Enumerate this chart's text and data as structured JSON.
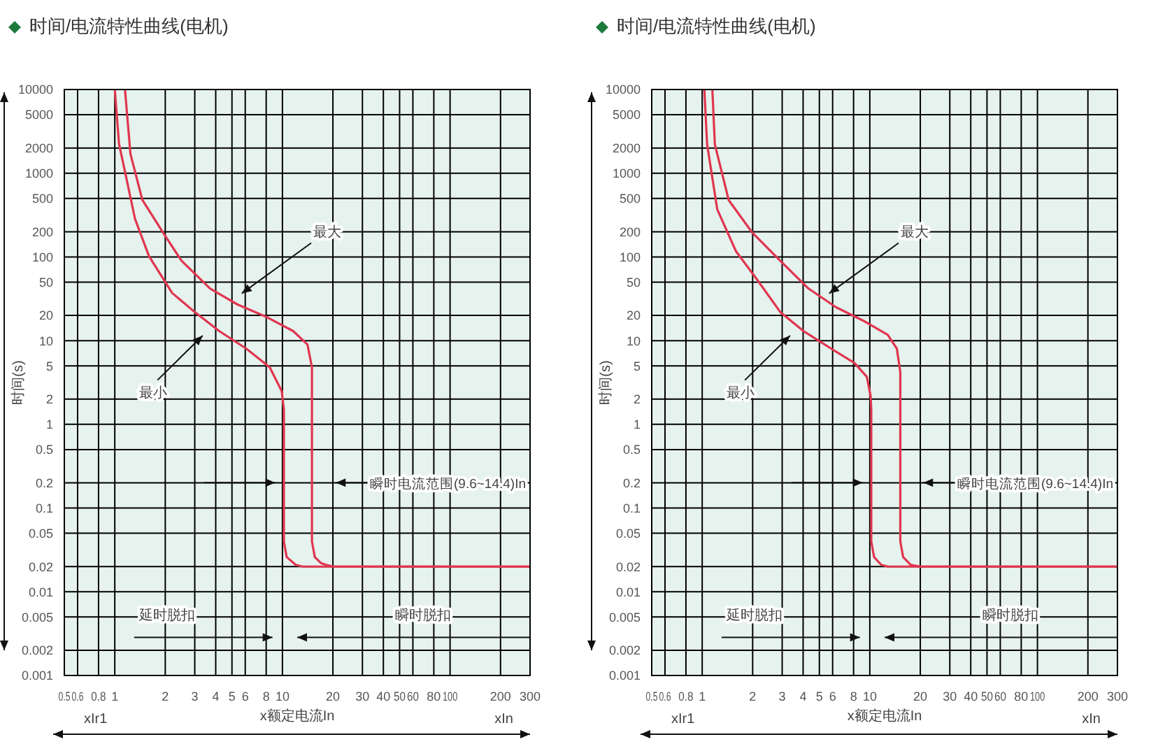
{
  "chart_data": [
    {
      "type": "line",
      "title": "时间/电流特性曲线(电机)",
      "xlabel": "x额定电流In",
      "ylabel": "时间(s)",
      "log": "xy",
      "xlim": [
        0.5,
        300
      ],
      "ylim": [
        0.001,
        10000
      ],
      "xticks": [
        0.5,
        0.6,
        0.8,
        1,
        2,
        3,
        4,
        5,
        6,
        8,
        10,
        20,
        30,
        40,
        50,
        60,
        80,
        100,
        200,
        300
      ],
      "yticks": [
        0.001,
        0.002,
        0.005,
        0.01,
        0.02,
        0.05,
        0.1,
        0.2,
        0.5,
        1,
        2,
        5,
        10,
        20,
        50,
        100,
        200,
        500,
        1000,
        2000,
        5000,
        10000
      ],
      "grid": true,
      "series": [
        {
          "color": "#e0364f",
          "x": [
            1.0,
            1.06,
            1.2,
            1.32,
            1.6,
            2.2,
            3,
            4.2,
            6.1,
            8.4,
            9.9,
            10.2,
            10.2,
            10.6,
            12,
            13.2,
            300
          ],
          "values": [
            10000,
            2240,
            700,
            285,
            102,
            37,
            22,
            13,
            8,
            4.8,
            2.5,
            1.5,
            0.04,
            0.026,
            0.021,
            0.02,
            0.02
          ]
        },
        {
          "color": "#e0364f",
          "x": [
            1.15,
            1.24,
            1.46,
            1.94,
            2.5,
            3.7,
            5.4,
            7.9,
            11.6,
            14.1,
            15,
            15,
            15.6,
            17,
            18.2,
            20,
            300
          ],
          "values": [
            10000,
            1700,
            480,
            195,
            90,
            42,
            27,
            19.5,
            13,
            9,
            4.8,
            0.04,
            0.026,
            0.022,
            0.021,
            0.02,
            0.02
          ]
        }
      ],
      "annotations": [
        "最大",
        "最小",
        "延时脱扣",
        "瞬时脱扣",
        "瞬时电流范围(9.6~14.4)In",
        "xIr1",
        "xIn"
      ]
    },
    {
      "type": "line",
      "title": "时间/电流特性曲线(电机)",
      "xlabel": "x额定电流In",
      "ylabel": "时间(s)",
      "log": "xy",
      "xlim": [
        0.5,
        300
      ],
      "ylim": [
        0.001,
        10000
      ],
      "xticks": [
        0.5,
        0.6,
        0.8,
        1,
        2,
        3,
        4,
        5,
        6,
        8,
        10,
        20,
        30,
        40,
        50,
        60,
        80,
        100,
        200,
        300
      ],
      "yticks": [
        0.001,
        0.002,
        0.005,
        0.01,
        0.02,
        0.05,
        0.1,
        0.2,
        0.5,
        1,
        2,
        5,
        10,
        20,
        50,
        100,
        200,
        500,
        1000,
        2000,
        5000,
        10000
      ],
      "grid": true,
      "series": [
        {
          "color": "#e0364f",
          "x": [
            1.03,
            1.07,
            1.23,
            1.59,
            2.12,
            2.92,
            4.0,
            5.9,
            8.1,
            9.6,
            10.1,
            10.2,
            10.2,
            10.6,
            11.7,
            12.8,
            300
          ],
          "values": [
            10000,
            2210,
            370,
            117,
            54,
            22,
            13.1,
            8,
            5.4,
            3.7,
            2.2,
            1.5,
            0.04,
            0.026,
            0.021,
            0.02,
            0.02
          ]
        },
        {
          "color": "#e0364f",
          "x": [
            1.15,
            1.19,
            1.44,
            1.99,
            2.92,
            4.3,
            6.3,
            9.3,
            12.8,
            14.5,
            15.2,
            15.2,
            15.8,
            17.5,
            20,
            300
          ],
          "values": [
            10000,
            2210,
            476,
            195,
            90,
            42,
            25,
            17,
            11.7,
            8,
            4.2,
            0.04,
            0.026,
            0.021,
            0.02,
            0.02
          ]
        }
      ],
      "annotations": [
        "最大",
        "最小",
        "延时脱扣",
        "瞬时脱扣",
        "瞬时电流范围(9.6~14.4)In",
        "xIr1",
        "xIn"
      ]
    }
  ]
}
